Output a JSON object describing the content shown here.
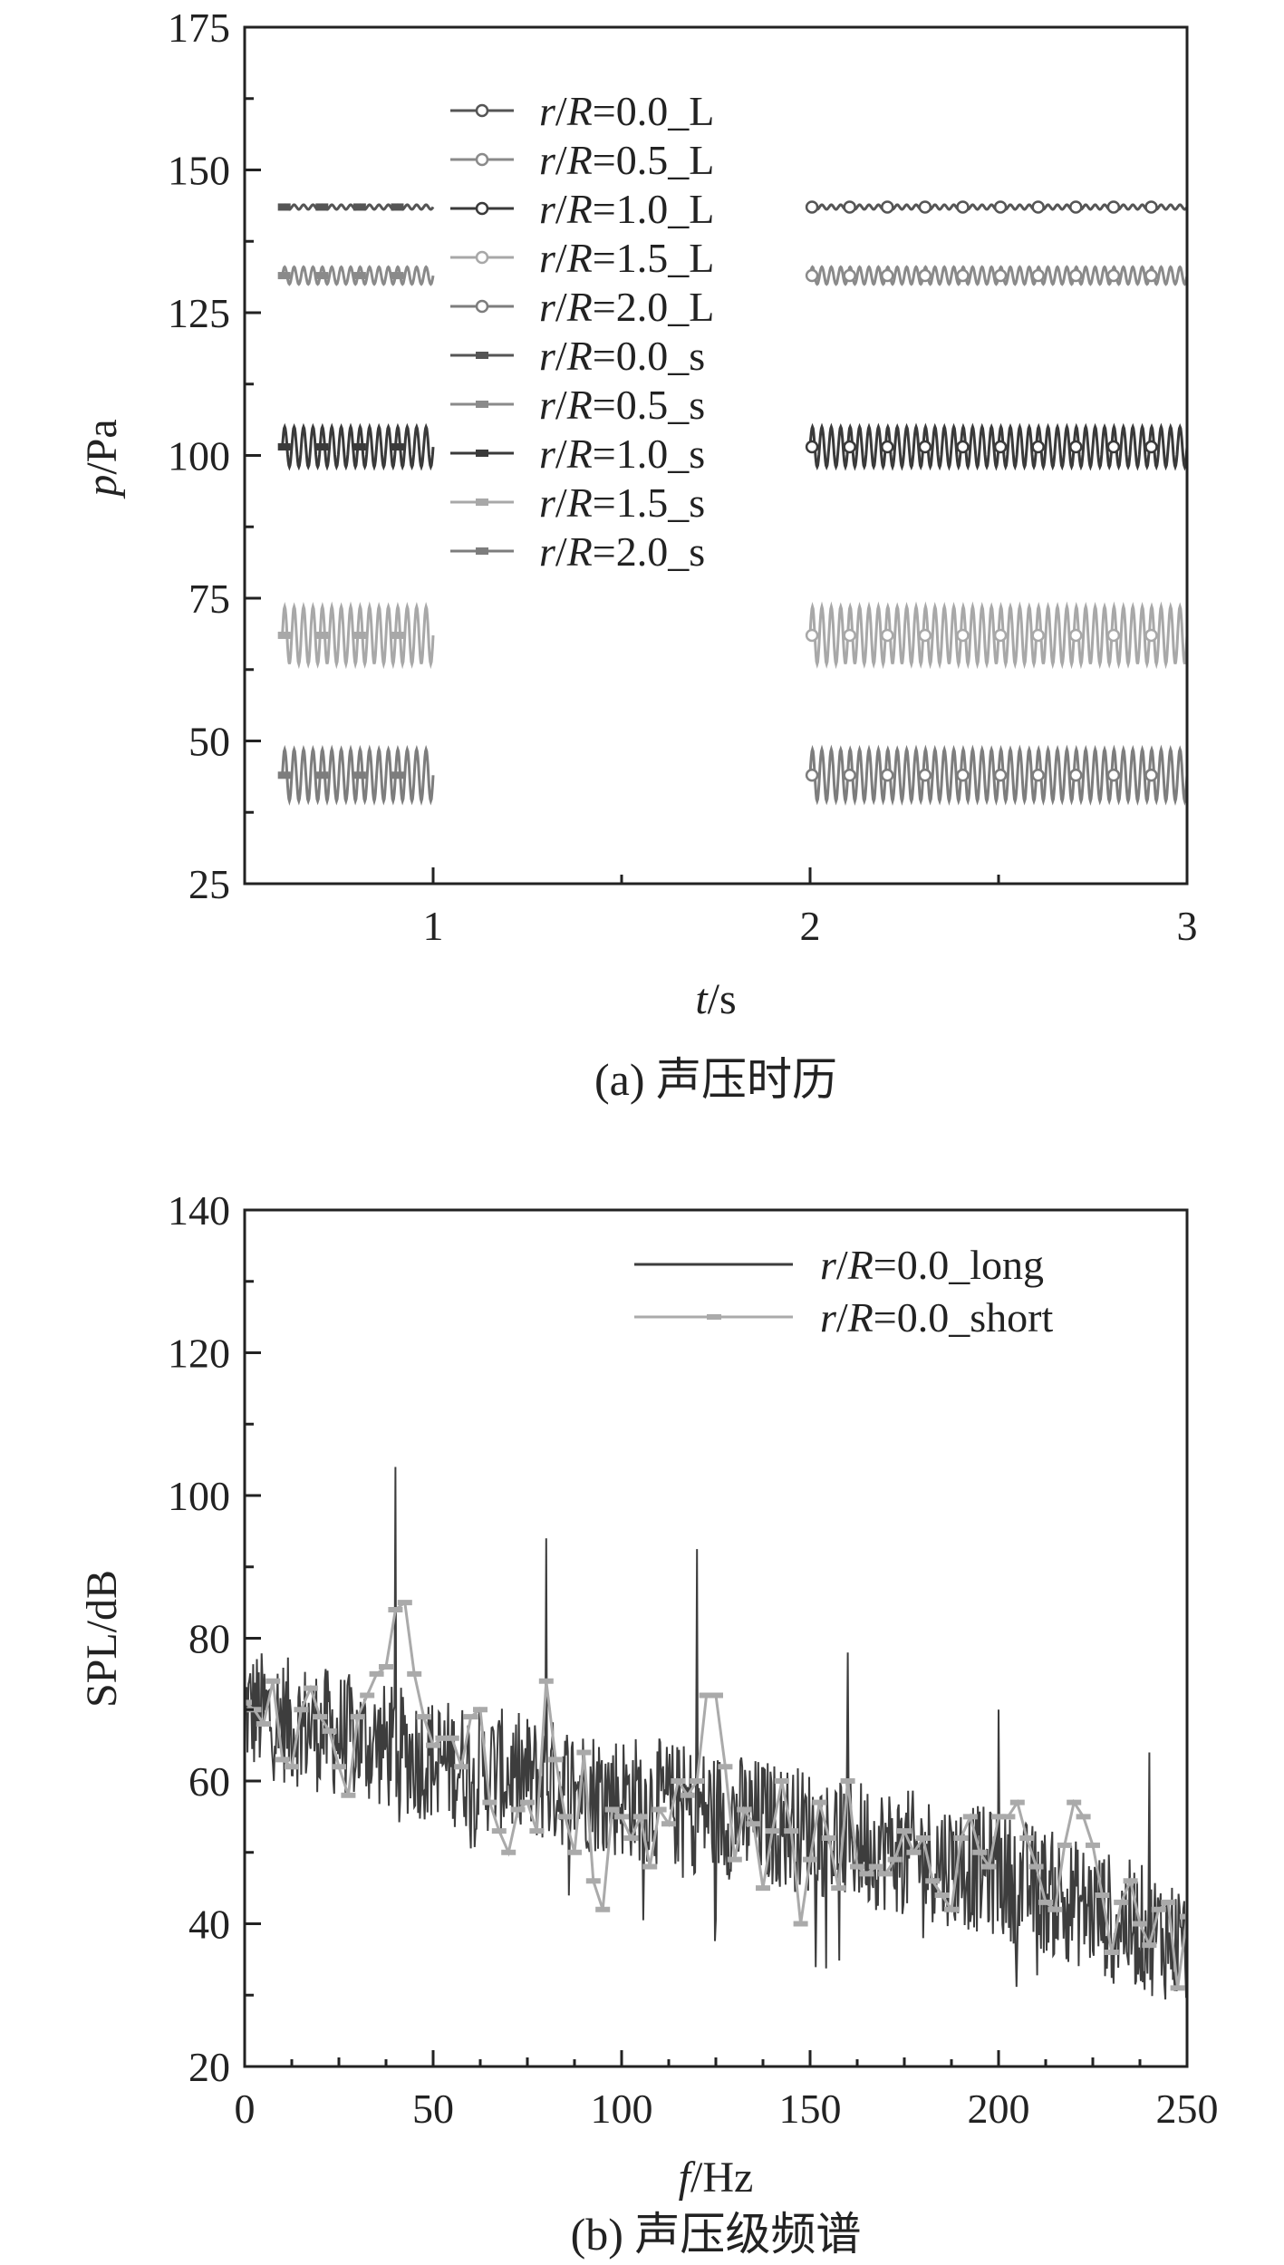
{
  "chart_data": [
    {
      "type": "line",
      "caption": "(a) 声压时历",
      "xlabel": {
        "italic": "t",
        "rest": "/s"
      },
      "ylabel": {
        "italic": "p",
        "rest": "/Pa"
      },
      "xlim": [
        0.5,
        3
      ],
      "ylim": [
        25,
        175
      ],
      "x_ticks": [
        1,
        2,
        3
      ],
      "x_minor_ticks": [
        1.5,
        2.5
      ],
      "y_ticks": [
        25,
        50,
        75,
        100,
        125,
        150,
        175
      ],
      "legend_position": "top-left",
      "series": [
        {
          "name": "r/R=0.0_L",
          "name_italic": "r",
          "name_mid": "/",
          "name_italic2": "R",
          "name_rest": "=0.0_L",
          "color": "#555555",
          "marker": "circle",
          "mean": 143.5,
          "amplitude": 0.4,
          "x_range": [
            2.0,
            3.0
          ]
        },
        {
          "name": "r/R=0.5_L",
          "name_italic": "r",
          "name_mid": "/",
          "name_italic2": "R",
          "name_rest": "=0.5_L",
          "color": "#8a8a8a",
          "marker": "circle",
          "mean": 131.5,
          "amplitude": 1.5,
          "x_range": [
            2.0,
            3.0
          ]
        },
        {
          "name": "r/R=1.0_L",
          "name_italic": "r",
          "name_mid": "/",
          "name_italic2": "R",
          "name_rest": "=1.0_L",
          "color": "#3a3a3a",
          "marker": "circle",
          "mean": 101.5,
          "amplitude": 3.5,
          "x_range": [
            2.0,
            3.0
          ]
        },
        {
          "name": "r/R=1.5_L",
          "name_italic": "r",
          "name_mid": "/",
          "name_italic2": "R",
          "name_rest": "=1.5_L",
          "color": "#a8a8a8",
          "marker": "circle",
          "mean": 68.5,
          "amplitude": 5.0,
          "x_range": [
            2.0,
            3.0
          ]
        },
        {
          "name": "r/R=2.0_L",
          "name_italic": "r",
          "name_mid": "/",
          "name_italic2": "R",
          "name_rest": "=2.0_L",
          "color": "#7d7d7d",
          "marker": "circle",
          "mean": 44.0,
          "amplitude": 4.5,
          "x_range": [
            2.0,
            3.0
          ]
        },
        {
          "name": "r/R=0.0_s",
          "name_italic": "r",
          "name_mid": "/",
          "name_italic2": "R",
          "name_rest": "=0.0_s",
          "color": "#555555",
          "marker": "square",
          "mean": 143.5,
          "amplitude": 0.4,
          "x_range": [
            0.6,
            1.0
          ]
        },
        {
          "name": "r/R=0.5_s",
          "name_italic": "r",
          "name_mid": "/",
          "name_italic2": "R",
          "name_rest": "=0.5_s",
          "color": "#8a8a8a",
          "marker": "square",
          "mean": 131.5,
          "amplitude": 1.5,
          "x_range": [
            0.6,
            1.0
          ]
        },
        {
          "name": "r/R=1.0_s",
          "name_italic": "r",
          "name_mid": "/",
          "name_italic2": "R",
          "name_rest": "=1.0_s",
          "color": "#3a3a3a",
          "marker": "square",
          "mean": 101.5,
          "amplitude": 3.5,
          "x_range": [
            0.6,
            1.0
          ]
        },
        {
          "name": "r/R=1.5_s",
          "name_italic": "r",
          "name_mid": "/",
          "name_italic2": "R",
          "name_rest": "=1.5_s",
          "color": "#a8a8a8",
          "marker": "square",
          "mean": 68.5,
          "amplitude": 5.0,
          "x_range": [
            0.6,
            1.0
          ]
        },
        {
          "name": "r/R=2.0_s",
          "name_italic": "r",
          "name_mid": "/",
          "name_italic2": "R",
          "name_rest": "=2.0_s",
          "color": "#7d7d7d",
          "marker": "square",
          "mean": 44.0,
          "amplitude": 4.5,
          "x_range": [
            0.6,
            1.0
          ]
        }
      ],
      "oscillation_frequency_hz": 40
    },
    {
      "type": "line",
      "caption": "(b) 声压级频谱",
      "xlabel": {
        "italic": "f",
        "rest": "/Hz"
      },
      "ylabel": {
        "italic": "",
        "rest": "SPL/dB"
      },
      "xlim": [
        0,
        250
      ],
      "ylim": [
        20,
        140
      ],
      "x_ticks": [
        0,
        50,
        100,
        150,
        200,
        250
      ],
      "y_ticks": [
        20,
        40,
        60,
        80,
        100,
        120,
        140
      ],
      "legend_position": "top-right",
      "series": [
        {
          "name": "r/R=0.0_long",
          "name_italic": "r",
          "name_mid": "/",
          "name_italic2": "R",
          "name_rest": "=0.0_long",
          "color": "#3d3d3d",
          "marker": "none",
          "trend": {
            "x": [
              0,
              50,
              100,
              150,
              200,
              250
            ],
            "y": [
              70,
              63,
              58,
              53,
              47,
              37
            ]
          },
          "noise_amplitude": 9,
          "peaks": [
            {
              "x": 40,
              "y": 104
            },
            {
              "x": 80,
              "y": 94
            },
            {
              "x": 120,
              "y": 92.5
            },
            {
              "x": 160,
              "y": 78
            },
            {
              "x": 200,
              "y": 70
            },
            {
              "x": 240,
              "y": 64
            }
          ]
        },
        {
          "name": "r/R=0.0_short",
          "name_italic": "r",
          "name_mid": "/",
          "name_italic2": "R",
          "name_rest": "=0.0_short",
          "color": "#aaaaaa",
          "marker": "dash",
          "x": [
            0,
            2.5,
            5,
            7.5,
            10,
            12.5,
            15,
            17.5,
            20,
            22.5,
            25,
            27.5,
            30,
            32.5,
            35,
            37.5,
            40,
            42.5,
            45,
            47.5,
            50,
            52.5,
            55,
            57.5,
            60,
            62.5,
            65,
            67.5,
            70,
            72.5,
            75,
            77.5,
            80,
            82.5,
            85,
            87.5,
            90,
            92.5,
            95,
            97.5,
            100,
            102.5,
            105,
            107.5,
            110,
            112.5,
            115,
            117.5,
            120,
            122.5,
            125,
            127.5,
            130,
            132.5,
            135,
            137.5,
            140,
            142.5,
            145,
            147.5,
            150,
            152.5,
            155,
            157.5,
            160,
            162.5,
            165,
            167.5,
            170,
            172.5,
            175,
            177.5,
            180,
            182.5,
            185,
            187.5,
            190,
            192.5,
            195,
            197.5,
            200,
            202.5,
            205,
            207.5,
            210,
            212.5,
            215,
            217.5,
            220,
            222.5,
            225,
            227.5,
            230,
            232.5,
            235,
            237.5,
            240,
            242.5,
            245,
            247.5,
            250
          ],
          "y": [
            71,
            70,
            68,
            74,
            63,
            62,
            70,
            73,
            69,
            67,
            62,
            58,
            69,
            72,
            75,
            76,
            84,
            85,
            75,
            69,
            65,
            66,
            66,
            62,
            69,
            70,
            57,
            53,
            50,
            56,
            57,
            53,
            74,
            63,
            55,
            50,
            64,
            46,
            42,
            56,
            55,
            52,
            55,
            48,
            56,
            54,
            60,
            58,
            60,
            72,
            72,
            62,
            49,
            56,
            54,
            45,
            53,
            60,
            53,
            40,
            49,
            57,
            52,
            45,
            60,
            48,
            47,
            48,
            47,
            49,
            53,
            50,
            52,
            46,
            44,
            42,
            52,
            55,
            50,
            48,
            55,
            55,
            57,
            52,
            48,
            43,
            42,
            51,
            57,
            55,
            51,
            44,
            36,
            43,
            46,
            40,
            37,
            42,
            43,
            31,
            41
          ]
        }
      ]
    }
  ]
}
